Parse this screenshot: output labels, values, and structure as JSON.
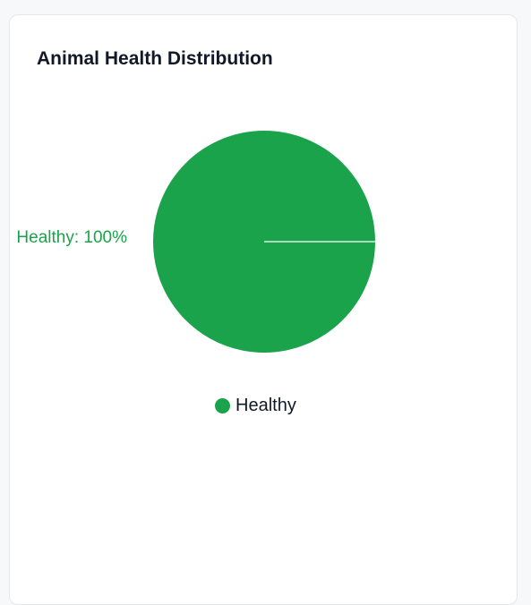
{
  "card": {
    "title": "Animal Health Distribution"
  },
  "chart_data": {
    "type": "pie",
    "title": "Animal Health Distribution",
    "slices": [
      {
        "name": "Healthy",
        "value": 100,
        "color": "#1aa34a",
        "label": "Healthy: 100%"
      }
    ],
    "legend": {
      "position": "bottom",
      "items": [
        "Healthy"
      ]
    }
  }
}
